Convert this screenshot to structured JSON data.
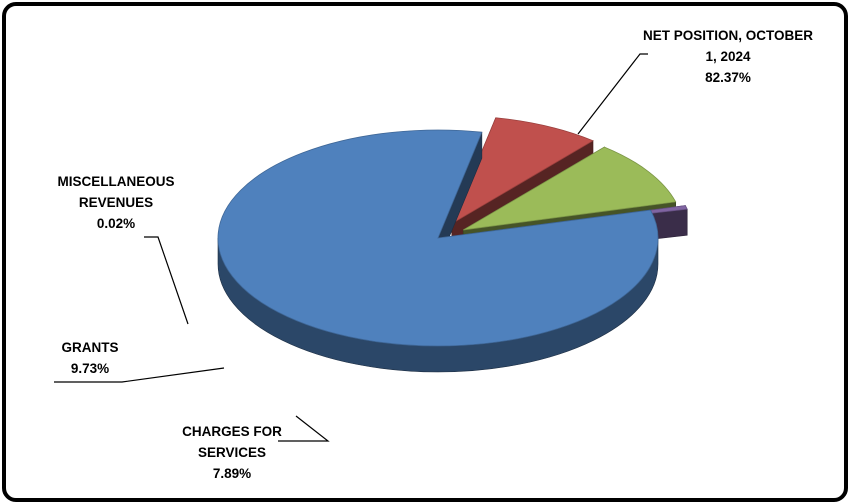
{
  "chart_data": {
    "type": "pie",
    "title": "",
    "style": "3d-exploded",
    "slices": [
      {
        "name": "NET POSITION, OCTOBER 1, 2024",
        "value": 82.37,
        "value_label": "82.37%",
        "label_lines": [
          "NET POSITION, OCTOBER",
          "1, 2024"
        ],
        "color": "#4F81BD"
      },
      {
        "name": "CHARGES FOR SERVICES",
        "value": 7.89,
        "value_label": "7.89%",
        "label_lines": [
          "CHARGES FOR",
          "SERVICES"
        ],
        "color": "#C0504D"
      },
      {
        "name": "GRANTS",
        "value": 9.73,
        "value_label": "9.73%",
        "label_lines": [
          "GRANTS"
        ],
        "color": "#9BBB59"
      },
      {
        "name": "MISCELLANEOUS REVENUES",
        "value": 0.02,
        "value_label": "0.02%",
        "label_lines": [
          "MISCELLANEOUS",
          "REVENUES"
        ],
        "color": "#8064A2"
      }
    ]
  }
}
